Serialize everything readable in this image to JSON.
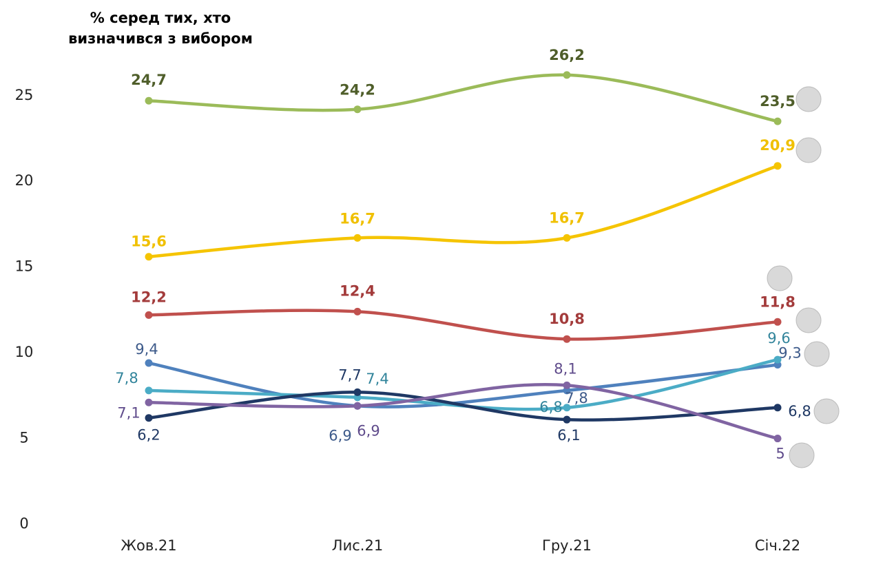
{
  "chart_data": {
    "type": "line",
    "title": [
      "% серед тих, хто",
      "визначився з вибором"
    ],
    "categories": [
      "Жов.21",
      "Лис.21",
      "Гру.21",
      "Січ.22"
    ],
    "ylim": [
      0,
      27
    ],
    "yticks": [
      0,
      5,
      10,
      15,
      20,
      25
    ],
    "grid": false,
    "series": [
      {
        "color": "#9bbb59",
        "label_color": "#4f5e2a",
        "values": [
          24.7,
          24.2,
          26.2,
          23.5
        ],
        "value_labels": [
          "24,7",
          "24,2",
          "26,2",
          "23,5"
        ]
      },
      {
        "color": "#f5c400",
        "label_color": "#f0c000",
        "values": [
          15.6,
          16.7,
          16.7,
          20.9
        ],
        "value_labels": [
          "15,6",
          "16,7",
          "16,7",
          "20,9"
        ]
      },
      {
        "color": "#c0504d",
        "label_color": "#a33b3b",
        "values": [
          12.2,
          12.4,
          10.8,
          11.8
        ],
        "value_labels": [
          "12,2",
          "12,4",
          "10,8",
          "11,8"
        ]
      },
      {
        "color": "#4f81bd",
        "label_color": "#3d5a8a",
        "values": [
          9.4,
          6.9,
          7.8,
          9.3
        ],
        "value_labels": [
          "9,4",
          "6,9",
          "7,8",
          "9,3"
        ]
      },
      {
        "color": "#4bacc6",
        "label_color": "#31849b",
        "values": [
          7.8,
          7.4,
          6.8,
          9.6
        ],
        "value_labels": [
          "7,8",
          "7,4",
          "6,8",
          "9,6"
        ]
      },
      {
        "color": "#1f3864",
        "label_color": "#1f3864",
        "values": [
          6.2,
          7.7,
          6.1,
          6.8
        ],
        "value_labels": [
          "6,2",
          "7,7",
          "6,1",
          "6,8"
        ]
      },
      {
        "color": "#8064a2",
        "label_color": "#5f4b8b",
        "values": [
          7.1,
          6.9,
          8.1,
          5
        ],
        "value_labels": [
          "7,1",
          "6,9",
          "8,1",
          "5"
        ]
      }
    ]
  }
}
